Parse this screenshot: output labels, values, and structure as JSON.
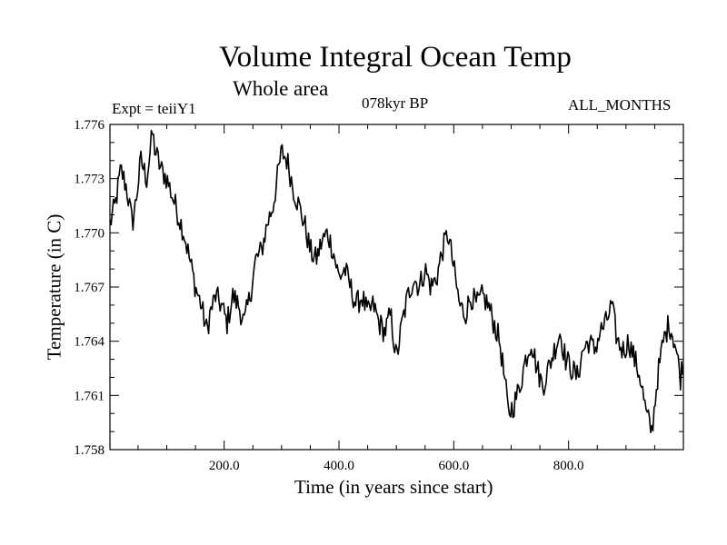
{
  "chart_data": {
    "type": "line",
    "title": "Volume Integral Ocean Temp",
    "subtitle": "Whole area",
    "experiment": "Expt = teiiY1",
    "period": "078kyr BP",
    "months": "ALL_MONTHS",
    "xlabel": "Time (in years since start)",
    "ylabel": "Temperature (in C)",
    "xlim": [
      1,
      1000
    ],
    "ylim": [
      1.758,
      1.776
    ],
    "xticks": [
      200,
      400,
      600,
      800
    ],
    "xtick_labels": [
      "200.0",
      "400.0",
      "600.0",
      "800.0"
    ],
    "yticks": [
      1.758,
      1.761,
      1.764,
      1.767,
      1.77,
      1.773,
      1.776
    ],
    "ytick_labels": [
      "1.758",
      "1.761",
      "1.764",
      "1.767",
      "1.770",
      "1.773",
      "1.776"
    ],
    "grid": false,
    "line_color": "#000000",
    "series": [
      {
        "x": [
          1,
          10,
          20,
          30,
          40,
          45,
          55,
          65,
          75,
          80,
          90,
          100,
          110,
          120,
          130,
          140,
          150,
          160,
          170,
          175,
          185,
          195,
          205,
          215,
          225,
          235,
          245,
          255,
          265,
          275,
          285,
          295,
          300,
          310,
          320,
          330,
          340,
          350,
          360,
          370,
          380,
          390,
          400,
          410,
          420,
          430,
          440,
          450,
          460,
          470,
          480,
          490,
          500,
          510,
          520,
          530,
          540,
          550,
          560,
          570,
          580,
          590,
          600,
          610,
          620,
          630,
          640,
          650,
          660,
          670,
          680,
          690,
          695,
          705,
          715,
          725,
          735,
          745,
          755,
          765,
          775,
          785,
          795,
          805,
          815,
          825,
          835,
          845,
          855,
          865,
          875,
          885,
          895,
          905,
          915,
          925,
          935,
          945,
          955,
          965,
          975,
          985,
          995,
          1000
        ],
        "y": [
          1.7705,
          1.7715,
          1.7735,
          1.7725,
          1.7705,
          1.7715,
          1.774,
          1.773,
          1.7755,
          1.7745,
          1.7735,
          1.773,
          1.772,
          1.771,
          1.77,
          1.7685,
          1.767,
          1.766,
          1.7645,
          1.7655,
          1.7665,
          1.766,
          1.765,
          1.7665,
          1.766,
          1.765,
          1.7665,
          1.7685,
          1.769,
          1.7705,
          1.7715,
          1.7735,
          1.7745,
          1.774,
          1.7725,
          1.7715,
          1.7705,
          1.769,
          1.7685,
          1.7695,
          1.77,
          1.769,
          1.7675,
          1.768,
          1.767,
          1.766,
          1.7665,
          1.7655,
          1.766,
          1.765,
          1.7645,
          1.7655,
          1.763,
          1.765,
          1.7665,
          1.7675,
          1.767,
          1.768,
          1.767,
          1.7675,
          1.769,
          1.77,
          1.768,
          1.766,
          1.7655,
          1.7665,
          1.766,
          1.7665,
          1.766,
          1.765,
          1.764,
          1.7615,
          1.76,
          1.7605,
          1.7615,
          1.763,
          1.764,
          1.7625,
          1.7615,
          1.7625,
          1.7635,
          1.7645,
          1.763,
          1.7625,
          1.762,
          1.7635,
          1.764,
          1.7635,
          1.7645,
          1.765,
          1.766,
          1.764,
          1.7635,
          1.764,
          1.763,
          1.762,
          1.76,
          1.759,
          1.762,
          1.764,
          1.765,
          1.764,
          1.762,
          1.763
        ]
      }
    ]
  }
}
